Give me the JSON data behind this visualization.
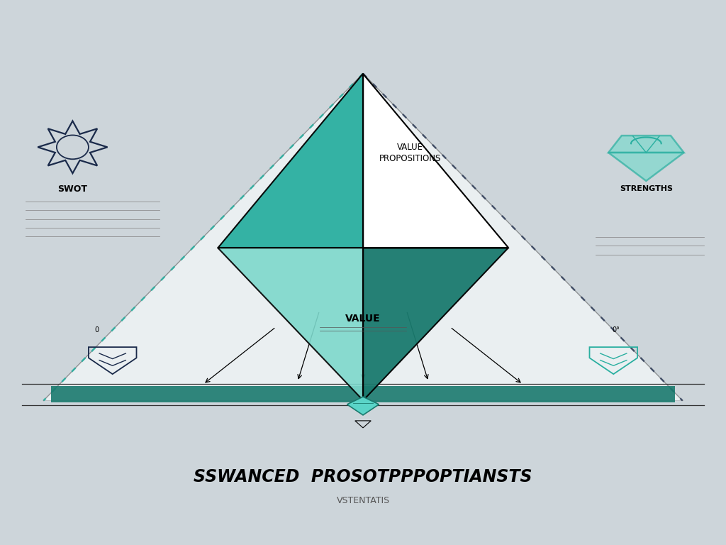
{
  "title": "SSWANCED  PROSOTPPPOPTIANSTS",
  "subtitle": "VSTENTATIS",
  "bg_color": "#cdd5da",
  "teal_dark": "#1a7a6e",
  "teal_mid": "#2aafa0",
  "teal_light": "#7dd8cc",
  "teal_bright": "#00c8b4",
  "navy": "#1a2a4a",
  "label_value_prop": "VALUE\nPROPOSITIONS",
  "label_value": "VALUE",
  "label_swot": "SWOT",
  "label_right": "STRENGTHS"
}
